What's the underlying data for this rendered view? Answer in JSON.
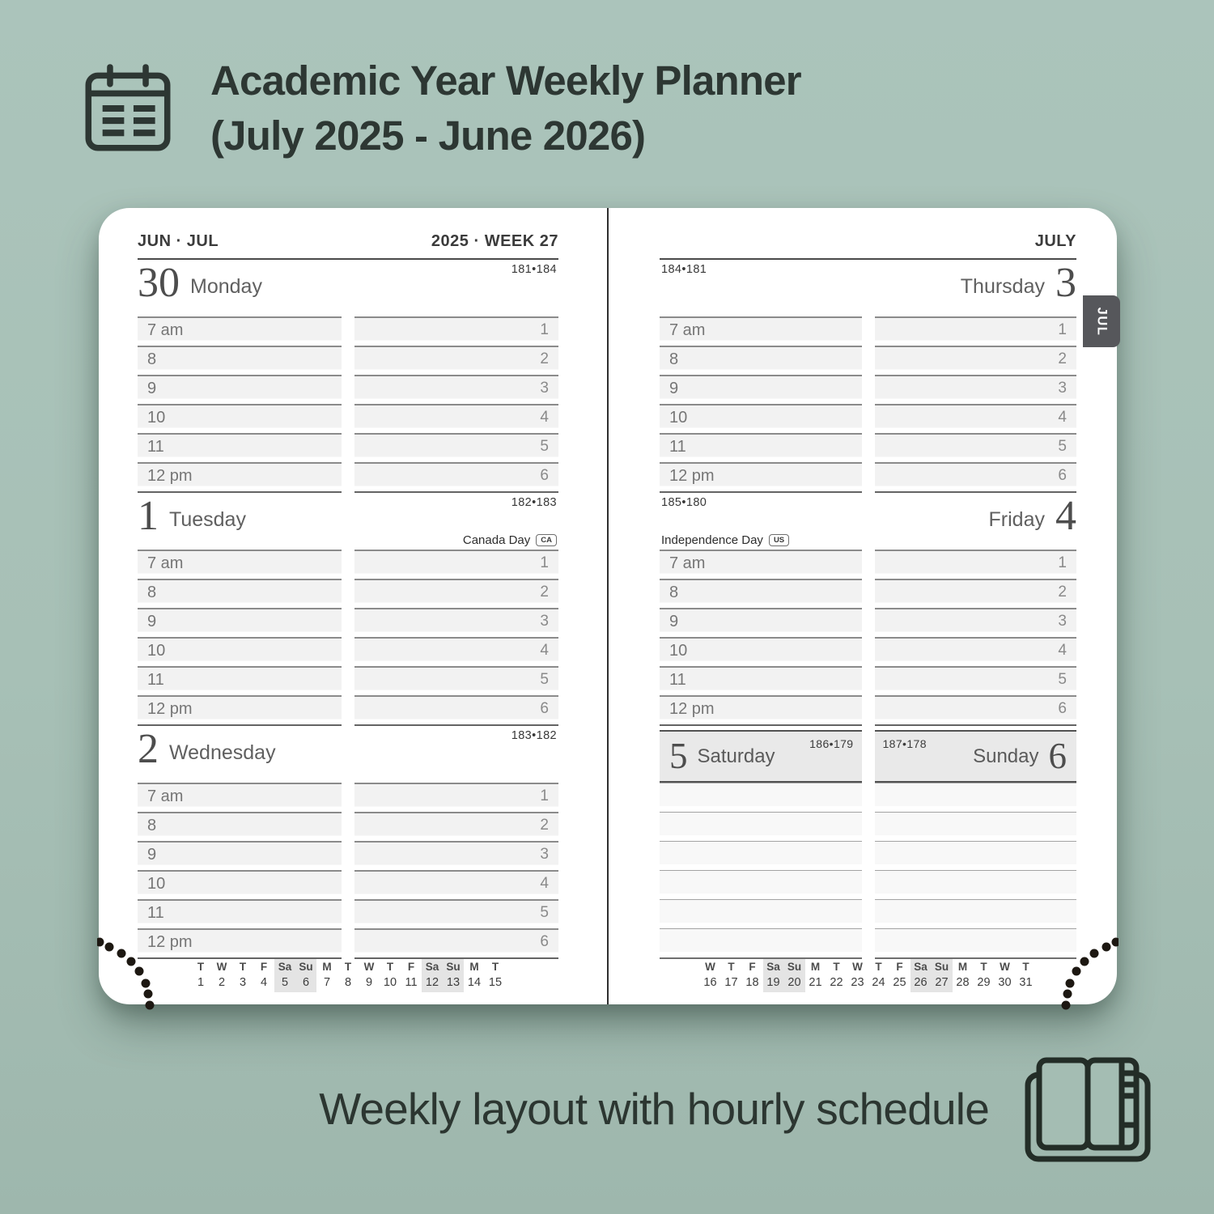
{
  "title": {
    "line1": "Academic Year Weekly Planner",
    "line2": "(July 2025 - June 2026)"
  },
  "caption": "Weekly layout with hourly schedule",
  "colors": {
    "background": "#a7c0b6",
    "card": "#ffffff",
    "ink": "#2d3733",
    "tab": "#56575b",
    "hour_row_fill": "#f2f2f2",
    "weekend_header_fill": "#e9e9e9",
    "minical_highlight": "#e4e4e4"
  },
  "hours": [
    "7 am",
    "8",
    "9",
    "10",
    "11",
    "12 pm"
  ],
  "slots": [
    "1",
    "2",
    "3",
    "4",
    "5",
    "6"
  ],
  "left_page": {
    "header_left": "JUN · JUL",
    "header_right": "2025 · WEEK 27",
    "days": [
      {
        "date": "30",
        "name": "Monday",
        "day_of_year": "181•184",
        "holiday_label": "",
        "holiday_badge": ""
      },
      {
        "date": "1",
        "name": "Tuesday",
        "day_of_year": "182•183",
        "holiday_label": "Canada Day",
        "holiday_badge": "CA"
      },
      {
        "date": "2",
        "name": "Wednesday",
        "day_of_year": "183•182",
        "holiday_label": "",
        "holiday_badge": ""
      }
    ],
    "mini_calendar": {
      "letters": [
        "T",
        "W",
        "T",
        "F",
        "Sa",
        "Su",
        "M",
        "T",
        "W",
        "T",
        "F",
        "Sa",
        "Su",
        "M",
        "T"
      ],
      "numbers": [
        "1",
        "2",
        "3",
        "4",
        "5",
        "6",
        "7",
        "8",
        "9",
        "10",
        "11",
        "12",
        "13",
        "14",
        "15"
      ],
      "weekend_columns": [
        4,
        5,
        11,
        12
      ]
    }
  },
  "right_page": {
    "header_right": "JULY",
    "tab_label": "JUL",
    "days": [
      {
        "date": "3",
        "name": "Thursday",
        "day_of_year": "184•181",
        "holiday_label": "",
        "holiday_badge": ""
      },
      {
        "date": "4",
        "name": "Friday",
        "day_of_year": "185•180",
        "holiday_label": "Independence Day",
        "holiday_badge": "US"
      }
    ],
    "weekend": {
      "saturday": {
        "date": "5",
        "name": "Saturday",
        "day_of_year": "186•179"
      },
      "sunday": {
        "date": "6",
        "name": "Sunday",
        "day_of_year": "187•178"
      }
    },
    "mini_calendar": {
      "letters": [
        "W",
        "T",
        "F",
        "Sa",
        "Su",
        "M",
        "T",
        "W",
        "T",
        "F",
        "Sa",
        "Su",
        "M",
        "T",
        "W",
        "T"
      ],
      "numbers": [
        "16",
        "17",
        "18",
        "19",
        "20",
        "21",
        "22",
        "23",
        "24",
        "25",
        "26",
        "27",
        "28",
        "29",
        "30",
        "31"
      ],
      "weekend_columns": [
        3,
        4,
        10,
        11
      ]
    }
  }
}
